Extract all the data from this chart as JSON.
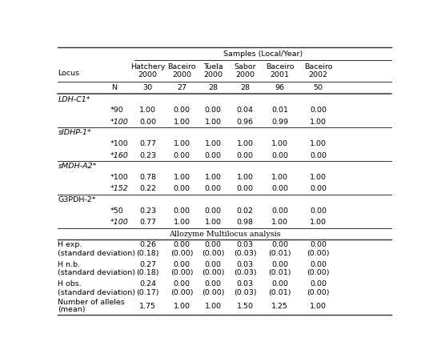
{
  "title_samples": "Samples (Local/Year)",
  "locus_label": "Locus",
  "col_headers": [
    "Hatchery\n2000",
    "Baceiro\n2000",
    "Tuela\n2000",
    "Sabor\n2000",
    "Baceiro\n2001",
    "Baceiro\n2002"
  ],
  "n_vals": [
    "30",
    "27",
    "28",
    "28",
    "96",
    "50"
  ],
  "sections": [
    {
      "header": "LDH-C1*",
      "header_italic": true,
      "rows": [
        {
          "label": "*90",
          "label_italic": false,
          "vals": [
            "1.00",
            "0.00",
            "0.00",
            "0.04",
            "0.01",
            "0.00"
          ]
        },
        {
          "label": "*100",
          "label_italic": true,
          "vals": [
            "0.00",
            "1.00",
            "1.00",
            "0.96",
            "0.99",
            "1.00"
          ]
        }
      ]
    },
    {
      "header": "sIDHP-1*",
      "header_italic": true,
      "rows": [
        {
          "label": "*100",
          "label_italic": false,
          "vals": [
            "0.77",
            "1.00",
            "1.00",
            "1.00",
            "1.00",
            "1.00"
          ]
        },
        {
          "label": "*160",
          "label_italic": true,
          "vals": [
            "0.23",
            "0.00",
            "0.00",
            "0.00",
            "0.00",
            "0.00"
          ]
        }
      ]
    },
    {
      "header": "sMDH-A2*",
      "header_italic": true,
      "rows": [
        {
          "label": "*100",
          "label_italic": false,
          "vals": [
            "0.78",
            "1.00",
            "1.00",
            "1.00",
            "1.00",
            "1.00"
          ]
        },
        {
          "label": "*152",
          "label_italic": true,
          "vals": [
            "0.22",
            "0.00",
            "0.00",
            "0.00",
            "0.00",
            "0.00"
          ]
        }
      ]
    },
    {
      "header": "G3PDH-2*",
      "header_italic": false,
      "rows": [
        {
          "label": "*50",
          "label_italic": false,
          "vals": [
            "0.23",
            "0.00",
            "0.00",
            "0.02",
            "0.00",
            "0.00"
          ]
        },
        {
          "label": "*100",
          "label_italic": true,
          "vals": [
            "0.77",
            "1.00",
            "1.00",
            "0.98",
            "1.00",
            "1.00"
          ]
        }
      ]
    }
  ],
  "multilocus_title": "Allozyme Multilocus analysis",
  "multilocus_rows": [
    {
      "label1": "H exp.",
      "label2": "(standard deviation)",
      "val1": [
        "0.26",
        "0.00",
        "0.00",
        "0.03",
        "0.00",
        "0.00"
      ],
      "val2": [
        "(0.18)",
        "(0.00)",
        "(0.00)",
        "(0.03)",
        "(0.01)",
        "(0.00)"
      ]
    },
    {
      "label1": "H n.b.",
      "label2": "(standard deviation)",
      "val1": [
        "0.27",
        "0.00",
        "0.00",
        "0.03",
        "0.00",
        "0.00"
      ],
      "val2": [
        "(0.18)",
        "(0.00)",
        "(0.00)",
        "(0.03)",
        "(0.01)",
        "(0.00)"
      ]
    },
    {
      "label1": "H obs.",
      "label2": "(standard deviation)",
      "val1": [
        "0.24",
        "0.00",
        "0.00",
        "0.03",
        "0.00",
        "0.00"
      ],
      "val2": [
        "(0.17)",
        "(0.00)",
        "(0.00)",
        "(0.03)",
        "(0.01)",
        "(0.00)"
      ]
    },
    {
      "label1": "Number of alleles",
      "label2": "(mean)",
      "val1": [
        "1.75",
        "1.00",
        "1.00",
        "1.50",
        "1.25",
        "1.00"
      ],
      "val2": [
        "",
        "",
        "",
        "",
        "",
        ""
      ]
    }
  ],
  "bg_color": "#ffffff",
  "line_color": "#333333",
  "text_color": "#000000",
  "font_size": 6.8
}
